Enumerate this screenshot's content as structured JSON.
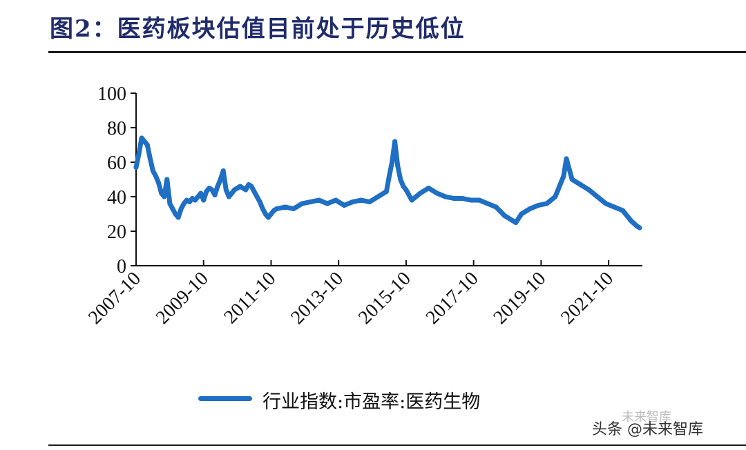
{
  "header": {
    "title": "图2：医药板块估值目前处于历史低位"
  },
  "chart_data": {
    "type": "line",
    "title": "图2：医药板块估值目前处于历史低位",
    "xlabel": "",
    "ylabel": "",
    "ylim": [
      0,
      100
    ],
    "yticks": [
      "0",
      "20",
      "40",
      "60",
      "80",
      "100"
    ],
    "xticks": [
      "2007-10",
      "2009-10",
      "2011-10",
      "2013-10",
      "2015-10",
      "2017-10",
      "2019-10",
      "2021-10"
    ],
    "x_range": [
      "2007-10",
      "2022-10"
    ],
    "grid": false,
    "legend_position": "bottom",
    "series": [
      {
        "name": "行业指数:市盈率:医药生物",
        "color": "#1f6fc4",
        "x": [
          "2007-10",
          "2007-11",
          "2007-12",
          "2008-01",
          "2008-02",
          "2008-03",
          "2008-04",
          "2008-05",
          "2008-06",
          "2008-07",
          "2008-08",
          "2008-09",
          "2008-10",
          "2008-11",
          "2008-12",
          "2009-01",
          "2009-02",
          "2009-03",
          "2009-04",
          "2009-05",
          "2009-06",
          "2009-07",
          "2009-08",
          "2009-09",
          "2009-10",
          "2009-11",
          "2009-12",
          "2010-01",
          "2010-02",
          "2010-03",
          "2010-04",
          "2010-05",
          "2010-06",
          "2010-07",
          "2010-08",
          "2010-09",
          "2010-10",
          "2010-11",
          "2010-12",
          "2011-01",
          "2011-02",
          "2011-03",
          "2011-04",
          "2011-05",
          "2011-06",
          "2011-07",
          "2011-08",
          "2011-09",
          "2011-10",
          "2011-11",
          "2011-12",
          "2012-03",
          "2012-06",
          "2012-09",
          "2012-12",
          "2013-03",
          "2013-06",
          "2013-09",
          "2013-12",
          "2014-03",
          "2014-06",
          "2014-09",
          "2014-12",
          "2015-03",
          "2015-04",
          "2015-05",
          "2015-06",
          "2015-07",
          "2015-08",
          "2015-09",
          "2015-10",
          "2015-12",
          "2016-03",
          "2016-06",
          "2016-09",
          "2016-12",
          "2017-03",
          "2017-06",
          "2017-09",
          "2017-12",
          "2018-03",
          "2018-06",
          "2018-09",
          "2018-12",
          "2019-01",
          "2019-03",
          "2019-06",
          "2019-09",
          "2019-12",
          "2020-03",
          "2020-06",
          "2020-07",
          "2020-08",
          "2020-09",
          "2020-12",
          "2021-03",
          "2021-06",
          "2021-09",
          "2021-12",
          "2022-03",
          "2022-04",
          "2022-06",
          "2022-08",
          "2022-09"
        ],
        "values": [
          57,
          65,
          74,
          72,
          70,
          62,
          55,
          52,
          48,
          42,
          40,
          50,
          36,
          33,
          30,
          28,
          33,
          36,
          38,
          37,
          39,
          38,
          40,
          42,
          38,
          43,
          45,
          44,
          41,
          46,
          50,
          55,
          44,
          40,
          42,
          44,
          45,
          46,
          45,
          44,
          47,
          46,
          43,
          40,
          37,
          33,
          30,
          28,
          30,
          32,
          33,
          34,
          33,
          36,
          37,
          38,
          36,
          38,
          35,
          37,
          38,
          37,
          40,
          43,
          52,
          60,
          72,
          58,
          50,
          46,
          44,
          38,
          42,
          45,
          42,
          40,
          39,
          39,
          38,
          38,
          36,
          34,
          29,
          26,
          25,
          30,
          33,
          35,
          36,
          40,
          52,
          62,
          56,
          50,
          47,
          44,
          40,
          36,
          34,
          32,
          30,
          26,
          23,
          22
        ]
      }
    ]
  },
  "legend": {
    "label": "行业指数:市盈率:医药生物"
  },
  "watermark": {
    "text": "头条 @未来智库",
    "faded_text": "未来智库"
  }
}
